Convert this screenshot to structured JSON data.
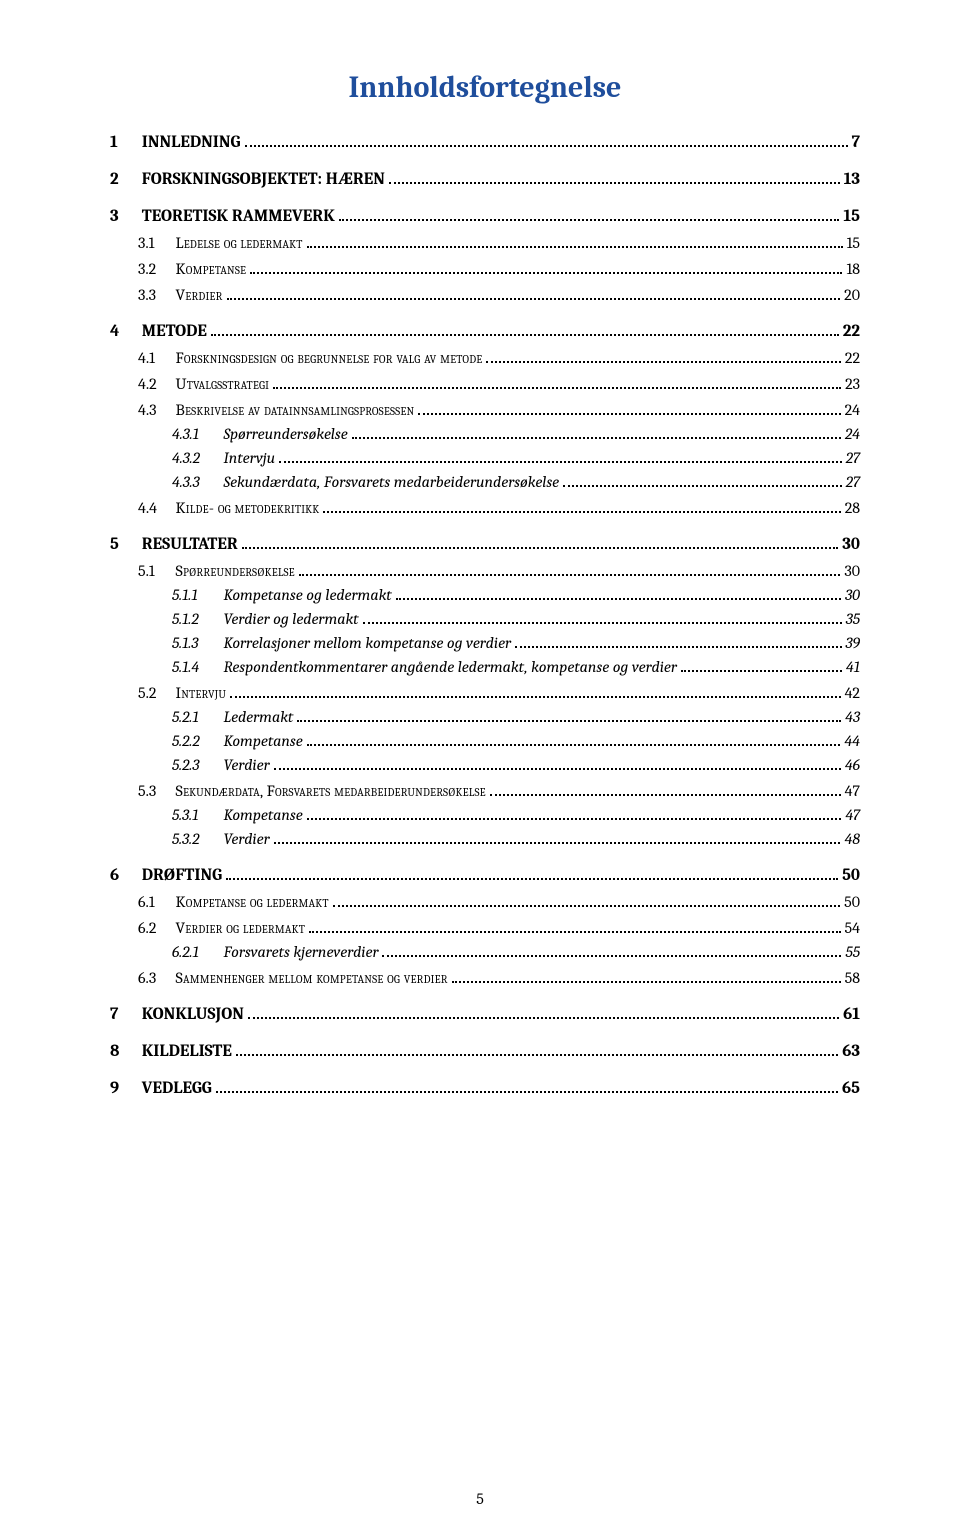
{
  "title": {
    "text": "Innholdsfortegnelse",
    "color": "#1f4e9c"
  },
  "footer_page_number": "5",
  "colors": {
    "text": "#000000",
    "background": "#ffffff",
    "title": "#1f4e9c"
  },
  "typography": {
    "body_font": "Cambria, Georgia, serif",
    "body_size_pt": 12,
    "title_size_pt": 22,
    "title_weight": "bold"
  },
  "entries": [
    {
      "level": 0,
      "num": "1",
      "text": "INNLEDNING",
      "page": "7"
    },
    {
      "level": 0,
      "num": "2",
      "text": "FORSKNINGSOBJEKTET: HÆREN",
      "page": "13"
    },
    {
      "level": 0,
      "num": "3",
      "text": "TEORETISK RAMMEVERK",
      "page": "15"
    },
    {
      "level": 1,
      "num": "3.1",
      "text": "Ledelse og ledermakt",
      "page": "15"
    },
    {
      "level": 1,
      "num": "3.2",
      "text": "Kompetanse",
      "page": "18"
    },
    {
      "level": 1,
      "num": "3.3",
      "text": "Verdier",
      "page": "20"
    },
    {
      "level": 0,
      "num": "4",
      "text": "METODE",
      "page": "22"
    },
    {
      "level": 1,
      "num": "4.1",
      "text": "Forskningsdesign og begrunnelse for valg av metode",
      "page": "22"
    },
    {
      "level": 1,
      "num": "4.2",
      "text": "Utvalgsstrategi",
      "page": "23"
    },
    {
      "level": 1,
      "num": "4.3",
      "text": "Beskrivelse av datainnsamlingsprosessen",
      "page": "24"
    },
    {
      "level": 2,
      "num": "4.3.1",
      "text": "Spørreundersøkelse",
      "page": "24"
    },
    {
      "level": 2,
      "num": "4.3.2",
      "text": "Intervju",
      "page": "27"
    },
    {
      "level": 2,
      "num": "4.3.3",
      "text": "Sekundærdata, Forsvarets medarbeiderundersøkelse",
      "page": "27"
    },
    {
      "level": 1,
      "num": "4.4",
      "text": "Kilde- og metodekritikk",
      "page": "28"
    },
    {
      "level": 0,
      "num": "5",
      "text": "RESULTATER",
      "page": "30"
    },
    {
      "level": 1,
      "num": "5.1",
      "text": "Spørreundersøkelse",
      "page": "30"
    },
    {
      "level": 2,
      "num": "5.1.1",
      "text": "Kompetanse og ledermakt",
      "page": "30"
    },
    {
      "level": 2,
      "num": "5.1.2",
      "text": "Verdier og ledermakt",
      "page": "35"
    },
    {
      "level": 2,
      "num": "5.1.3",
      "text": "Korrelasjoner mellom kompetanse og verdier",
      "page": "39"
    },
    {
      "level": 2,
      "num": "5.1.4",
      "text": "Respondentkommentarer angående ledermakt, kompetanse og verdier",
      "page": "41"
    },
    {
      "level": 1,
      "num": "5.2",
      "text": "Intervju",
      "page": "42"
    },
    {
      "level": 2,
      "num": "5.2.1",
      "text": "Ledermakt",
      "page": "43"
    },
    {
      "level": 2,
      "num": "5.2.2",
      "text": "Kompetanse",
      "page": "44"
    },
    {
      "level": 2,
      "num": "5.2.3",
      "text": "Verdier",
      "page": "46"
    },
    {
      "level": 1,
      "num": "5.3",
      "text": "Sekundærdata, Forsvarets medarbeiderundersøkelse",
      "page": "47"
    },
    {
      "level": 2,
      "num": "5.3.1",
      "text": "Kompetanse",
      "page": "47"
    },
    {
      "level": 2,
      "num": "5.3.2",
      "text": "Verdier",
      "page": "48"
    },
    {
      "level": 0,
      "num": "6",
      "text": "DRØFTING",
      "page": "50"
    },
    {
      "level": 1,
      "num": "6.1",
      "text": "Kompetanse og ledermakt",
      "page": "50"
    },
    {
      "level": 1,
      "num": "6.2",
      "text": "Verdier og ledermakt",
      "page": "54"
    },
    {
      "level": 2,
      "num": "6.2.1",
      "text": "Forsvarets kjerneverdier",
      "page": "55"
    },
    {
      "level": 1,
      "num": "6.3",
      "text": "Sammenhenger mellom kompetanse og verdier",
      "page": "58"
    },
    {
      "level": 0,
      "num": "7",
      "text": "KONKLUSJON",
      "page": "61"
    },
    {
      "level": 0,
      "num": "8",
      "text": "KILDELISTE",
      "page": "63"
    },
    {
      "level": 0,
      "num": "9",
      "text": "VEDLEGG",
      "page": "65"
    }
  ]
}
